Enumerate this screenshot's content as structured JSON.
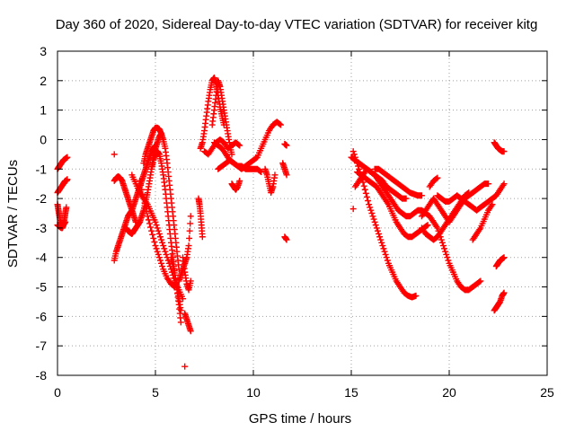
{
  "chart_data": {
    "type": "scatter",
    "title": "Day 360 of 2020, Sidereal Day-to-day VTEC variation (SDTVAR) for receiver kitg",
    "xlabel": "GPS time / hours",
    "ylabel": "SDTVAR / TECUs",
    "xlim": [
      0,
      25
    ],
    "ylim": [
      -8,
      3
    ],
    "xticks": [
      0,
      5,
      10,
      15,
      20,
      25
    ],
    "yticks": [
      -8,
      -7,
      -6,
      -5,
      -4,
      -3,
      -2,
      -1,
      0,
      1,
      2,
      3
    ],
    "grid": true,
    "marker": "+",
    "color": "#ff0000",
    "tracks": [
      {
        "x": [
          0.0,
          0.1,
          0.2,
          0.3,
          0.4,
          0.5
        ],
        "y": [
          -1.0,
          -0.9,
          -0.8,
          -0.7,
          -0.65,
          -0.6
        ]
      },
      {
        "x": [
          0.0,
          0.1,
          0.2,
          0.3,
          0.35,
          0.4,
          0.45,
          0.5
        ],
        "y": [
          -1.8,
          -1.7,
          -1.6,
          -1.5,
          -1.45,
          -1.4,
          -1.4,
          -1.35
        ]
      },
      {
        "x": [
          0.0,
          0.05,
          0.1,
          0.15,
          0.2,
          0.25,
          0.3,
          0.35,
          0.4,
          0.45
        ],
        "y": [
          -2.2,
          -2.4,
          -2.6,
          -2.8,
          -2.9,
          -3.0,
          -2.9,
          -2.7,
          -2.5,
          -2.3
        ]
      },
      {
        "x": [
          0.0,
          0.1,
          0.2,
          0.3,
          0.4
        ],
        "y": [
          -2.9,
          -2.95,
          -3.0,
          -2.9,
          -2.8
        ]
      },
      {
        "x": [
          2.9
        ],
        "y": [
          -0.5
        ]
      },
      {
        "x": [
          2.9,
          3.0,
          3.1,
          3.2,
          3.3,
          3.4,
          3.5,
          3.6,
          3.7,
          3.8,
          3.9,
          4.0,
          4.1,
          4.2,
          4.3,
          4.4,
          4.5,
          4.6,
          4.7,
          4.8,
          4.9,
          5.0
        ],
        "y": [
          -4.1,
          -3.8,
          -3.6,
          -3.4,
          -3.2,
          -3.0,
          -2.8,
          -2.6,
          -2.5,
          -2.4,
          -2.2,
          -2.0,
          -1.8,
          -1.6,
          -1.4,
          -1.2,
          -1.0,
          -0.8,
          -0.6,
          -0.4,
          -0.3,
          -0.2
        ]
      },
      {
        "x": [
          2.9,
          3.0,
          3.1,
          3.2,
          3.3,
          3.4,
          3.5,
          3.6,
          3.7,
          3.8,
          3.9,
          4.0
        ],
        "y": [
          -1.4,
          -1.3,
          -1.25,
          -1.3,
          -1.4,
          -1.6,
          -1.8,
          -2.0,
          -2.2,
          -2.4,
          -2.6,
          -2.8
        ]
      },
      {
        "x": [
          3.5,
          3.6,
          3.7,
          3.8,
          3.9,
          4.0,
          4.1,
          4.2,
          4.3,
          4.4,
          4.5,
          4.6,
          4.7,
          4.8,
          4.9,
          5.0,
          5.1,
          5.2,
          5.3
        ],
        "y": [
          -3.0,
          -3.1,
          -3.15,
          -3.2,
          -3.1,
          -3.0,
          -2.9,
          -2.8,
          -2.6,
          -2.4,
          -2.1,
          -1.8,
          -1.4,
          -1.0,
          -0.6,
          -0.3,
          -0.1,
          0.1,
          0.2
        ]
      },
      {
        "x": [
          4.4,
          4.5,
          4.6,
          4.7,
          4.8,
          4.9,
          5.0,
          5.1,
          5.2,
          5.3,
          5.4,
          5.5,
          5.6,
          5.7,
          5.8,
          5.9,
          6.0,
          6.1,
          6.2
        ],
        "y": [
          -0.8,
          -0.5,
          -0.3,
          -0.1,
          0.1,
          0.3,
          0.4,
          0.4,
          0.35,
          0.2,
          0.0,
          -0.3,
          -0.8,
          -1.4,
          -2.0,
          -2.6,
          -3.2,
          -3.8,
          -4.4
        ]
      },
      {
        "x": [
          3.8,
          4.0,
          4.2,
          4.4,
          4.6,
          4.8,
          5.0,
          5.2,
          5.4,
          5.6,
          5.8,
          6.0,
          6.2,
          6.4
        ],
        "y": [
          -1.2,
          -1.5,
          -1.8,
          -2.0,
          -2.2,
          -2.5,
          -2.8,
          -3.2,
          -3.6,
          -4.0,
          -4.4,
          -4.8,
          -5.1,
          -5.4
        ]
      },
      {
        "x": [
          4.2,
          4.4,
          4.6,
          4.8,
          5.0,
          5.2,
          5.4,
          5.6,
          5.8,
          6.0
        ],
        "y": [
          -1.4,
          -2.0,
          -2.6,
          -3.1,
          -3.6,
          -4.0,
          -4.4,
          -4.7,
          -4.9,
          -5.0
        ]
      },
      {
        "x": [
          4.8,
          4.9,
          5.0,
          5.1,
          5.2,
          5.3,
          5.4,
          5.5,
          5.6,
          5.7,
          5.8,
          5.9,
          6.0,
          6.1,
          6.2,
          6.3
        ],
        "y": [
          -1.0,
          -0.7,
          -0.5,
          -0.4,
          -0.5,
          -0.8,
          -1.2,
          -1.7,
          -2.3,
          -2.9,
          -3.5,
          -4.0,
          -4.6,
          -5.1,
          -5.6,
          -6.2
        ]
      },
      {
        "x": [
          5.8,
          5.9,
          6.0,
          6.1,
          6.2,
          6.3
        ],
        "y": [
          -4.0,
          -4.3,
          -4.6,
          -5.0,
          -5.4,
          -5.8
        ]
      },
      {
        "x": [
          6.2,
          6.3,
          6.4,
          6.5,
          6.6,
          6.7,
          6.8
        ],
        "y": [
          -4.8,
          -4.6,
          -4.4,
          -4.2,
          -4.0,
          -3.6,
          -2.6
        ]
      },
      {
        "x": [
          6.4,
          6.5,
          6.6,
          6.7,
          6.8
        ],
        "y": [
          -4.0,
          -4.5,
          -4.9,
          -5.1,
          -4.8
        ]
      },
      {
        "x": [
          6.5,
          6.6,
          6.7,
          6.8
        ],
        "y": [
          -5.9,
          -6.1,
          -6.3,
          -6.5
        ]
      },
      {
        "x": [
          6.5
        ],
        "y": [
          -7.7
        ]
      },
      {
        "x": [
          7.2,
          7.25,
          7.3,
          7.35,
          7.4
        ],
        "y": [
          -2.0,
          -2.2,
          -2.5,
          -2.9,
          -3.3
        ]
      },
      {
        "x": [
          7.3,
          7.4,
          7.5,
          7.6,
          7.7,
          7.8,
          7.9,
          8.0,
          8.1,
          8.2,
          8.3,
          8.4,
          8.5
        ],
        "y": [
          -0.3,
          -0.1,
          0.3,
          0.8,
          1.3,
          1.7,
          2.0,
          2.1,
          1.9,
          1.5,
          1.1,
          0.8,
          0.5
        ]
      },
      {
        "x": [
          7.9,
          8.0,
          8.1,
          8.2,
          8.3,
          8.4,
          8.5,
          8.6,
          8.7,
          8.8,
          8.9
        ],
        "y": [
          0.5,
          1.0,
          1.5,
          2.0,
          1.8,
          1.4,
          1.0,
          0.6,
          0.2,
          -0.2,
          -0.5
        ]
      },
      {
        "x": [
          8.0,
          8.2,
          8.4,
          8.6,
          8.8,
          9.0,
          9.2,
          9.4,
          9.6,
          9.8,
          10.0,
          10.2,
          10.4,
          10.6,
          10.8,
          11.0,
          11.2,
          11.4
        ],
        "y": [
          -0.1,
          -0.2,
          -0.3,
          -0.5,
          -0.7,
          -0.8,
          -0.9,
          -1.0,
          -0.9,
          -0.8,
          -0.7,
          -0.6,
          -0.3,
          0.0,
          0.3,
          0.5,
          0.6,
          0.5
        ]
      },
      {
        "x": [
          8.2,
          8.4,
          8.6,
          8.8,
          9.0,
          9.2,
          9.4,
          9.6,
          9.8,
          10.0,
          10.2,
          10.4
        ],
        "y": [
          -1.0,
          -0.9,
          -0.8,
          -0.7,
          -0.8,
          -0.9,
          -0.9,
          -1.0,
          -1.0,
          -1.0,
          -1.0,
          -1.1
        ]
      },
      {
        "x": [
          7.5,
          7.7,
          7.9,
          8.1,
          8.3,
          8.5,
          8.7,
          8.9,
          9.1,
          9.3
        ],
        "y": [
          -0.4,
          -0.5,
          -0.3,
          -0.1,
          0.0,
          -0.1,
          -0.3,
          -0.2,
          -0.1,
          -0.2
        ]
      },
      {
        "x": [
          8.9,
          9.0,
          9.1,
          9.2,
          9.3
        ],
        "y": [
          -1.5,
          -1.6,
          -1.7,
          -1.6,
          -1.4
        ]
      },
      {
        "x": [
          10.6,
          10.7,
          10.8,
          10.9,
          11.0,
          11.1
        ],
        "y": [
          -1.0,
          -1.2,
          -1.5,
          -1.8,
          -1.6,
          -1.2
        ]
      },
      {
        "x": [
          11.5,
          11.6,
          11.7
        ],
        "y": [
          -0.8,
          -1.0,
          -1.2
        ]
      },
      {
        "x": [
          11.6,
          11.7
        ],
        "y": [
          -3.3,
          -3.4
        ]
      },
      {
        "x": [
          11.6,
          11.7
        ],
        "y": [
          -0.15,
          -0.2
        ]
      },
      {
        "x": [
          15.1
        ],
        "y": [
          -2.35
        ]
      },
      {
        "x": [
          15.0,
          15.2,
          15.4,
          15.6,
          15.8,
          16.0,
          16.2,
          16.4,
          16.6,
          16.8,
          17.0,
          17.2,
          17.4,
          17.6,
          17.8
        ],
        "y": [
          -0.6,
          -0.7,
          -0.8,
          -0.9,
          -1.0,
          -1.1,
          -1.2,
          -1.3,
          -1.4,
          -1.6,
          -1.7,
          -1.8,
          -1.9,
          -2.0,
          -2.0
        ]
      },
      {
        "x": [
          15.1,
          15.3,
          15.5,
          15.7,
          15.9,
          16.1,
          16.3,
          16.5,
          16.7,
          16.9,
          17.1,
          17.3,
          17.5,
          17.7,
          17.9,
          18.1,
          18.3
        ],
        "y": [
          -0.4,
          -0.8,
          -1.2,
          -1.7,
          -2.2,
          -2.6,
          -3.0,
          -3.4,
          -3.8,
          -4.2,
          -4.5,
          -4.8,
          -5.0,
          -5.2,
          -5.3,
          -5.35,
          -5.3
        ]
      },
      {
        "x": [
          15.3,
          15.5,
          15.7,
          15.9,
          16.1,
          16.3,
          16.5,
          16.7,
          16.9,
          17.1,
          17.3,
          17.5,
          17.7,
          17.9,
          18.1,
          18.3,
          18.5,
          18.7,
          18.9
        ],
        "y": [
          -1.1,
          -1.2,
          -1.3,
          -1.4,
          -1.5,
          -1.6,
          -1.8,
          -2.0,
          -2.2,
          -2.5,
          -2.8,
          -3.0,
          -3.2,
          -3.3,
          -3.3,
          -3.2,
          -3.1,
          -3.0,
          -2.9
        ]
      },
      {
        "x": [
          15.2,
          15.4,
          15.6,
          15.8,
          16.0,
          16.2,
          16.4,
          16.6,
          16.8,
          17.0,
          17.2,
          17.4,
          17.6,
          17.8,
          18.0,
          18.2,
          18.4,
          18.6,
          18.8,
          19.0,
          19.2,
          19.4,
          19.6,
          19.8,
          20.0,
          20.2,
          20.4,
          20.6,
          20.8,
          21.0,
          21.2,
          21.4,
          21.6
        ],
        "y": [
          -1.6,
          -1.4,
          -1.2,
          -1.0,
          -1.1,
          -1.2,
          -1.4,
          -1.6,
          -1.8,
          -2.0,
          -2.2,
          -2.4,
          -2.5,
          -2.6,
          -2.6,
          -2.5,
          -2.4,
          -2.4,
          -2.5,
          -2.6,
          -2.8,
          -3.0,
          -3.4,
          -3.8,
          -4.2,
          -4.5,
          -4.8,
          -5.0,
          -5.1,
          -5.1,
          -5.0,
          -4.9,
          -4.8
        ]
      },
      {
        "x": [
          16.2,
          16.4,
          16.6,
          16.8,
          17.0,
          17.2,
          17.4,
          17.6,
          17.8,
          18.0,
          18.2,
          18.4,
          18.6
        ],
        "y": [
          -1.0,
          -1.0,
          -1.1,
          -1.2,
          -1.3,
          -1.4,
          -1.5,
          -1.6,
          -1.7,
          -1.8,
          -1.85,
          -1.9,
          -1.9
        ]
      },
      {
        "x": [
          18.6,
          18.8,
          19.0,
          19.2,
          19.4,
          19.6,
          19.8,
          20.0,
          20.2,
          20.4,
          20.6,
          20.8,
          21.0,
          21.2,
          21.4,
          21.6,
          21.8,
          22.0
        ],
        "y": [
          -2.6,
          -2.4,
          -2.2,
          -2.0,
          -2.2,
          -2.4,
          -2.6,
          -2.8,
          -2.6,
          -2.4,
          -2.2,
          -2.0,
          -1.9,
          -1.8,
          -1.7,
          -1.6,
          -1.5,
          -1.5
        ]
      },
      {
        "x": [
          19.4,
          19.6,
          19.8,
          20.0,
          20.2,
          20.4,
          20.6,
          20.8,
          21.0,
          21.2,
          21.4,
          21.6,
          21.8,
          22.0,
          22.2,
          22.4,
          22.6,
          22.8
        ],
        "y": [
          -1.9,
          -2.0,
          -2.1,
          -2.1,
          -2.0,
          -1.9,
          -2.0,
          -2.1,
          -2.2,
          -2.3,
          -2.4,
          -2.3,
          -2.2,
          -2.1,
          -2.0,
          -1.9,
          -1.7,
          -1.5
        ]
      },
      {
        "x": [
          18.6,
          18.8,
          19.0,
          19.2,
          19.4,
          19.6,
          19.8,
          20.0,
          20.2,
          20.4,
          20.6,
          20.8,
          21.0
        ],
        "y": [
          -3.0,
          -3.2,
          -3.3,
          -3.4,
          -3.3,
          -3.1,
          -2.9,
          -2.7,
          -2.5,
          -2.3,
          -2.1,
          -1.9,
          -1.8
        ]
      },
      {
        "x": [
          19.0,
          19.2,
          19.4
        ],
        "y": [
          -1.6,
          -1.4,
          -1.3
        ]
      },
      {
        "x": [
          21.2,
          21.4,
          21.6,
          21.8,
          22.0,
          22.2
        ],
        "y": [
          -3.4,
          -3.2,
          -3.0,
          -2.7,
          -2.4,
          -2.2
        ]
      },
      {
        "x": [
          22.3,
          22.4,
          22.5,
          22.6,
          22.7,
          22.8
        ],
        "y": [
          -0.1,
          -0.2,
          -0.3,
          -0.35,
          -0.4,
          -0.4
        ]
      },
      {
        "x": [
          22.4,
          22.5,
          22.6,
          22.7,
          22.8
        ],
        "y": [
          -4.3,
          -4.2,
          -4.1,
          -4.05,
          -4.0
        ]
      },
      {
        "x": [
          22.3,
          22.4,
          22.5,
          22.6,
          22.7,
          22.8
        ],
        "y": [
          -5.8,
          -5.7,
          -5.6,
          -5.5,
          -5.3,
          -5.2
        ]
      }
    ]
  }
}
